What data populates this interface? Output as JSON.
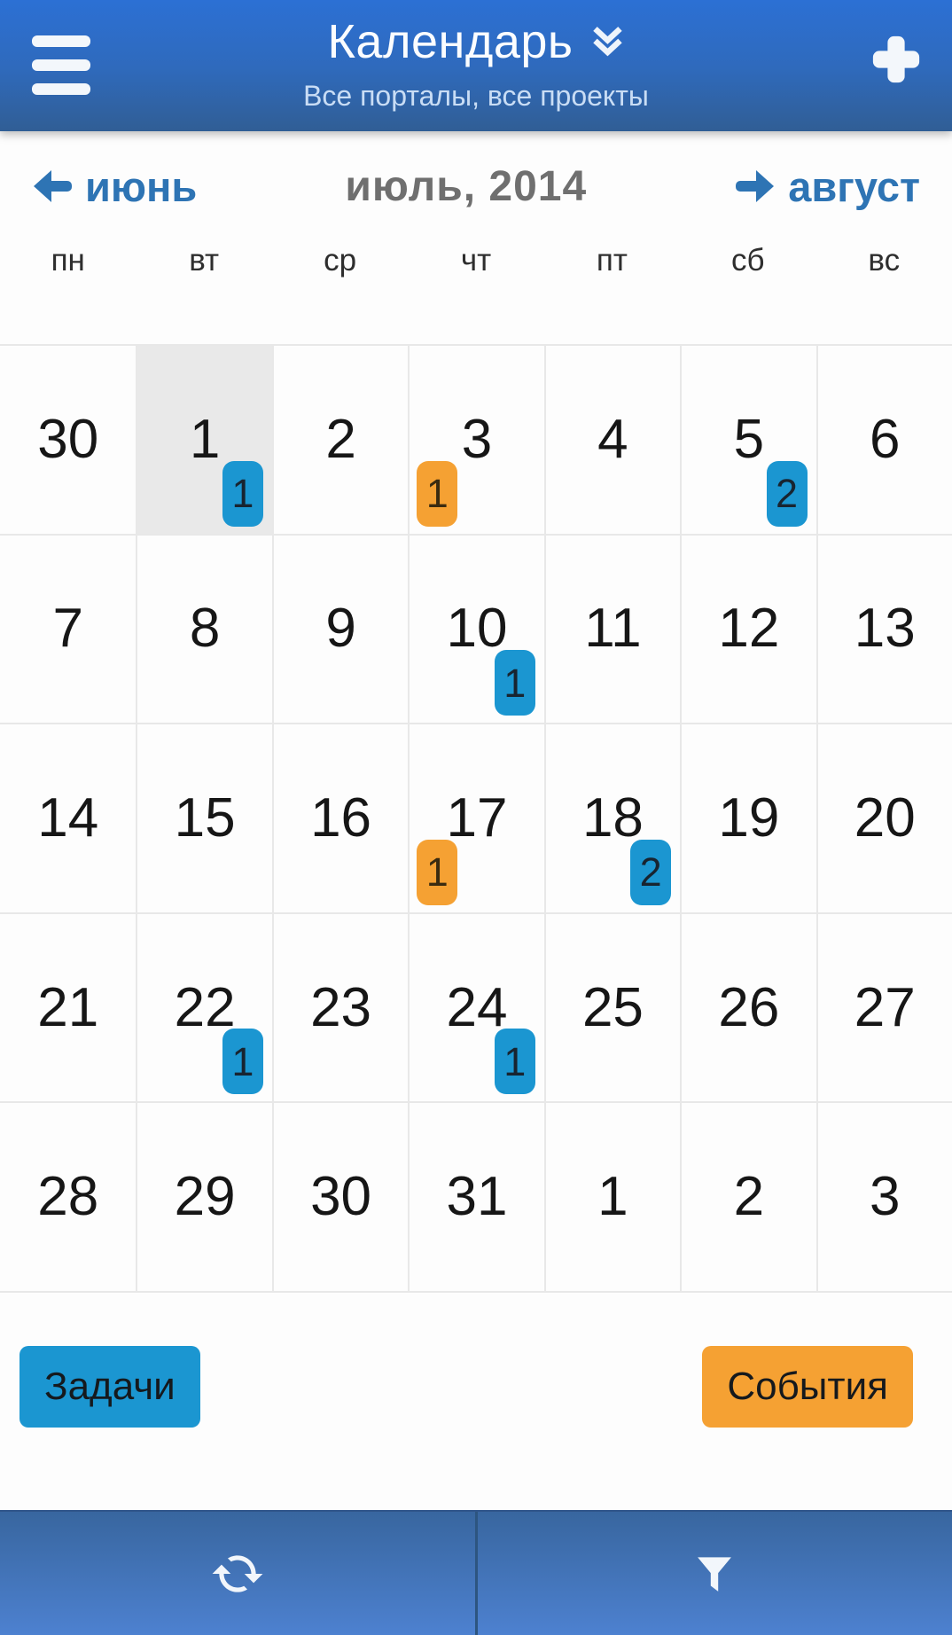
{
  "header": {
    "title": "Календарь",
    "subtitle": "Все порталы, все проекты",
    "menu_icon": "hamburger-menu",
    "title_expand_icon": "double-chevron-down",
    "add_icon": "plus"
  },
  "month_nav": {
    "prev": "июнь",
    "current": "июль, 2014",
    "next": "август",
    "prev_icon": "arrow-left",
    "next_icon": "arrow-right"
  },
  "weekdays": [
    "пн",
    "вт",
    "ср",
    "чт",
    "пт",
    "сб",
    "вс"
  ],
  "calendar": {
    "weeks": [
      [
        {
          "day": "30",
          "outside": true
        },
        {
          "day": "1",
          "selected": true,
          "tasks": "1"
        },
        {
          "day": "2"
        },
        {
          "day": "3",
          "events": "1"
        },
        {
          "day": "4"
        },
        {
          "day": "5",
          "tasks": "2"
        },
        {
          "day": "6"
        }
      ],
      [
        {
          "day": "7"
        },
        {
          "day": "8"
        },
        {
          "day": "9"
        },
        {
          "day": "10",
          "tasks": "1"
        },
        {
          "day": "11"
        },
        {
          "day": "12"
        },
        {
          "day": "13"
        }
      ],
      [
        {
          "day": "14"
        },
        {
          "day": "15"
        },
        {
          "day": "16"
        },
        {
          "day": "17",
          "events": "1"
        },
        {
          "day": "18",
          "tasks": "2"
        },
        {
          "day": "19"
        },
        {
          "day": "20"
        }
      ],
      [
        {
          "day": "21"
        },
        {
          "day": "22",
          "tasks": "1"
        },
        {
          "day": "23"
        },
        {
          "day": "24",
          "tasks": "1"
        },
        {
          "day": "25"
        },
        {
          "day": "26"
        },
        {
          "day": "27"
        }
      ],
      [
        {
          "day": "28"
        },
        {
          "day": "29"
        },
        {
          "day": "30"
        },
        {
          "day": "31"
        },
        {
          "day": "1",
          "outside": true
        },
        {
          "day": "2",
          "outside": true
        },
        {
          "day": "3",
          "outside": true
        }
      ]
    ]
  },
  "legend": {
    "tasks_label": "Задачи",
    "events_label": "События"
  },
  "footer": {
    "left_icon": "refresh",
    "right_icon": "filter"
  },
  "colors": {
    "accent_blue": "#2e74b4",
    "month_title": "#6f6f6f",
    "task": "#1b96d1",
    "event": "#f5a133",
    "selected_day_bg": "#e9e9e9",
    "grid_border": "#e8e8e8",
    "header_top": "#2c70d4",
    "header_bottom": "#305e95",
    "footer_top": "#38669f",
    "footer_bottom": "#4d81d0",
    "footer_divider": "#2d5580"
  }
}
